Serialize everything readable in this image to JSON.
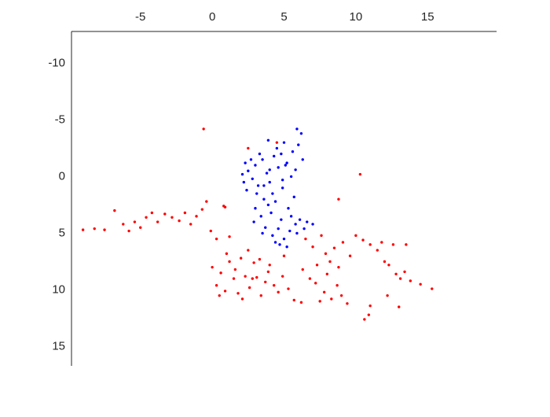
{
  "chart_data": {
    "type": "scatter",
    "xlim": [
      -9.8,
      19.8
    ],
    "xticks": [
      -5,
      0,
      5,
      10,
      15
    ],
    "xaxis_position": "top",
    "ylim": [
      -12.8,
      16.7
    ],
    "yticks": [
      -10,
      -5,
      0,
      5,
      10,
      15
    ],
    "y_inverted": true,
    "grid": false,
    "series": [
      {
        "color": "#ff0000",
        "x": [
          -9.0,
          -8.2,
          -7.5,
          -6.8,
          -6.2,
          -5.8,
          -5.4,
          -5.0,
          -4.6,
          -4.2,
          -3.8,
          -3.3,
          -2.8,
          -2.3,
          -1.9,
          -1.5,
          -1.1,
          -0.7,
          -0.4,
          -0.1,
          0.3,
          0.9,
          1.2,
          -0.6,
          0.8,
          2.5,
          4.5,
          10.3,
          8.8,
          0.0,
          0.3,
          0.6,
          0.9,
          1.2,
          1.5,
          1.8,
          2.0,
          2.3,
          2.6,
          2.9,
          3.1,
          3.4,
          3.7,
          4.0,
          4.3,
          4.6,
          1.0,
          2.5,
          3.3,
          1.6,
          2.8,
          0.5,
          2.1,
          3.9,
          4.9,
          5.3,
          5.7,
          6.2,
          5.0,
          6.5,
          7.0,
          7.3,
          7.6,
          7.9,
          8.2,
          8.5,
          8.8,
          9.1,
          7.2,
          7.8,
          8.3,
          8.7,
          9.0,
          9.4,
          7.5,
          6.8,
          8.0,
          9.6,
          6.3,
          10.0,
          10.5,
          11.0,
          11.5,
          12.0,
          12.3,
          12.8,
          13.1,
          13.4,
          13.8,
          11.8,
          12.6,
          13.5,
          14.5,
          15.3,
          13.0,
          11.0,
          10.6,
          10.9,
          12.2
        ],
        "y": [
          4.7,
          4.6,
          4.7,
          3.0,
          4.2,
          4.8,
          4.0,
          4.5,
          3.6,
          3.2,
          4.0,
          3.3,
          3.6,
          3.9,
          3.2,
          4.2,
          3.5,
          2.9,
          2.2,
          4.8,
          5.5,
          2.7,
          5.3,
          -4.2,
          2.6,
          -2.5,
          -3.0,
          -0.2,
          2.0,
          8.0,
          9.6,
          8.5,
          10.1,
          7.5,
          9.0,
          10.3,
          7.2,
          8.8,
          9.8,
          7.6,
          8.9,
          10.5,
          9.3,
          7.8,
          9.6,
          10.2,
          6.8,
          6.5,
          7.3,
          8.2,
          9.0,
          10.5,
          10.8,
          8.4,
          8.8,
          9.9,
          10.9,
          11.1,
          7.0,
          5.5,
          6.2,
          7.8,
          5.2,
          6.8,
          7.5,
          6.3,
          8.0,
          5.8,
          9.4,
          10.2,
          10.8,
          9.6,
          10.5,
          11.2,
          11.0,
          9.0,
          8.6,
          7.0,
          8.2,
          5.2,
          5.6,
          6.0,
          6.5,
          7.5,
          7.8,
          8.6,
          9.0,
          8.4,
          9.2,
          5.8,
          6.0,
          6.0,
          9.5,
          9.9,
          11.5,
          11.4,
          12.6,
          12.2,
          10.5
        ]
      },
      {
        "color": "#0000ff",
        "x": [
          2.2,
          2.5,
          2.8,
          3.0,
          3.2,
          2.4,
          2.1,
          3.5,
          3.8,
          4.0,
          4.3,
          4.6,
          4.9,
          5.2,
          5.5,
          5.8,
          4.5,
          5.0,
          5.6,
          6.2,
          5.9,
          6.0,
          3.3,
          2.7,
          4.2,
          3.6,
          3.9,
          4.1,
          4.4,
          5.3,
          5.7,
          3.4,
          3.0,
          4.8,
          3.7,
          3.5,
          4.2,
          4.6,
          5.0,
          5.4,
          5.8,
          6.1,
          6.6,
          7.0,
          4.7,
          5.2,
          4.4,
          5.9,
          6.4,
          3.1,
          2.3,
          4.9,
          5.5,
          3.9,
          4.8,
          2.9,
          6.3,
          5.1,
          3.6,
          4.0
        ],
        "y": [
          0.5,
          -0.5,
          0.2,
          -1.0,
          0.8,
          1.2,
          -0.2,
          -1.5,
          -0.3,
          0.5,
          -1.8,
          -0.8,
          0.3,
          -1.2,
          0.0,
          -0.6,
          -2.5,
          -3.0,
          -2.2,
          -3.8,
          -4.2,
          -2.8,
          -2.0,
          -1.5,
          1.5,
          2.0,
          2.5,
          3.2,
          2.2,
          2.8,
          1.8,
          3.5,
          2.8,
          3.8,
          4.5,
          5.0,
          5.2,
          4.6,
          5.5,
          4.8,
          4.2,
          3.8,
          4.0,
          4.2,
          6.0,
          6.2,
          5.8,
          5.0,
          4.6,
          1.5,
          -1.2,
          1.0,
          3.5,
          -3.2,
          -2.0,
          4.0,
          -1.5,
          -1.0,
          0.8,
          -0.6
        ]
      }
    ]
  }
}
